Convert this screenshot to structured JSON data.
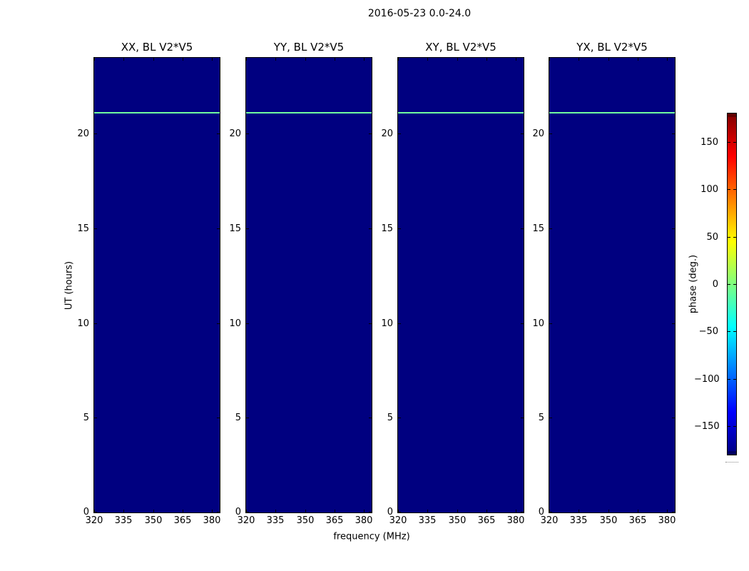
{
  "figure": {
    "suptitle": "2016-05-23 0.0-24.0",
    "xlabel": "frequency (MHz)",
    "ylabel": "UT (hours)",
    "colorbar_label": "phase (deg.)"
  },
  "chart_data": {
    "type": "heatmap",
    "title": "2016-05-23 0.0-24.0",
    "panel_arrangement": "1x4 row of waterfall plots sharing axes and one colorbar",
    "grid": false,
    "legend": "none",
    "panels": [
      {
        "title": "XX, BL V2*V5"
      },
      {
        "title": "YY, BL V2*V5"
      },
      {
        "title": "XY, BL V2*V5"
      },
      {
        "title": "YX, BL V2*V5"
      }
    ],
    "xlabel": "frequency (MHz)",
    "ylabel": "UT (hours)",
    "x_axis": {
      "range_mhz": [
        320,
        384
      ],
      "tick_values": [
        320,
        335,
        350,
        365,
        380
      ],
      "tick_labels": [
        "320",
        "335",
        "350",
        "365",
        "380"
      ]
    },
    "y_axis": {
      "range_hours": [
        0,
        24
      ],
      "tick_values": [
        0,
        5,
        10,
        15,
        20
      ],
      "tick_labels": [
        "0",
        "5",
        "10",
        "15",
        "20"
      ]
    },
    "colorbar": {
      "label": "phase (deg.)",
      "range_deg": [
        -180,
        180
      ],
      "tick_values": [
        150,
        100,
        50,
        0,
        -50,
        -100,
        -150
      ],
      "tick_labels": [
        "150",
        "100",
        "50",
        "0",
        "−50",
        "−100",
        "−150"
      ],
      "colormap": "jet",
      "gradient_stops": [
        {
          "pos": 0.0,
          "color": "#000080"
        },
        {
          "pos": 0.125,
          "color": "#0000ff"
        },
        {
          "pos": 0.375,
          "color": "#00ffff"
        },
        {
          "pos": 0.625,
          "color": "#ffff00"
        },
        {
          "pos": 0.875,
          "color": "#ff0000"
        },
        {
          "pos": 1.0,
          "color": "#800000"
        }
      ]
    },
    "heatmap_content": {
      "description": "all four panels identical: uniform phase near -180 deg (dark navy) across full frequency/time extent, with one thin horizontal stripe of near-zero phase",
      "background_phase_deg": -180,
      "background_color": "#000080",
      "stripes": [
        {
          "ut_hours": 21.1,
          "phase_deg": 10,
          "color": "#70fa9e",
          "thickness_hours": 0.1
        }
      ]
    },
    "colors": {
      "figure_bg": "#ffffff",
      "axes_frame": "#000000",
      "text": "#000000"
    }
  }
}
